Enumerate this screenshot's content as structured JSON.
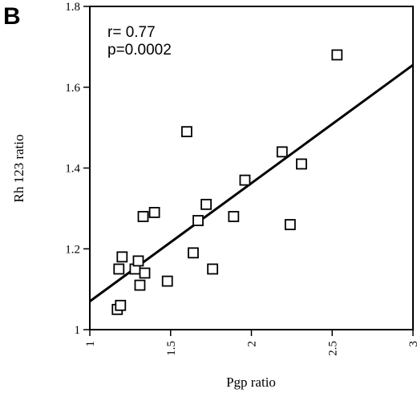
{
  "chart_data": {
    "type": "scatter",
    "panel_label": "B",
    "title": "",
    "xlabel": "Pgp ratio",
    "ylabel": "Rh 123  ratio",
    "xlim": [
      1,
      3
    ],
    "ylim": [
      1,
      1.8
    ],
    "xticks": [
      1,
      1.5,
      2,
      2.5,
      3
    ],
    "xtick_labels": [
      "1",
      "1.5",
      "2",
      "2.5",
      "3"
    ],
    "yticks": [
      1,
      1.2,
      1.4,
      1.6,
      1.8
    ],
    "ytick_labels": [
      "1",
      "1.2",
      "1.4",
      "1.6",
      "1.8"
    ],
    "grid": false,
    "marker": "open-square",
    "annotations": [
      "r= 0.77",
      "p=0.0002"
    ],
    "points": [
      {
        "x": 1.17,
        "y": 1.05
      },
      {
        "x": 1.19,
        "y": 1.06
      },
      {
        "x": 1.18,
        "y": 1.15
      },
      {
        "x": 1.2,
        "y": 1.18
      },
      {
        "x": 1.28,
        "y": 1.15
      },
      {
        "x": 1.3,
        "y": 1.17
      },
      {
        "x": 1.31,
        "y": 1.11
      },
      {
        "x": 1.34,
        "y": 1.14
      },
      {
        "x": 1.33,
        "y": 1.28
      },
      {
        "x": 1.4,
        "y": 1.29
      },
      {
        "x": 1.48,
        "y": 1.12
      },
      {
        "x": 1.6,
        "y": 1.49
      },
      {
        "x": 1.64,
        "y": 1.19
      },
      {
        "x": 1.67,
        "y": 1.27
      },
      {
        "x": 1.72,
        "y": 1.31
      },
      {
        "x": 1.76,
        "y": 1.15
      },
      {
        "x": 1.89,
        "y": 1.28
      },
      {
        "x": 1.96,
        "y": 1.37
      },
      {
        "x": 2.19,
        "y": 1.44
      },
      {
        "x": 2.24,
        "y": 1.26
      },
      {
        "x": 2.31,
        "y": 1.41
      },
      {
        "x": 2.53,
        "y": 1.68
      }
    ],
    "regression_line": {
      "x": [
        1,
        3
      ],
      "y": [
        1.07,
        1.655
      ]
    }
  }
}
